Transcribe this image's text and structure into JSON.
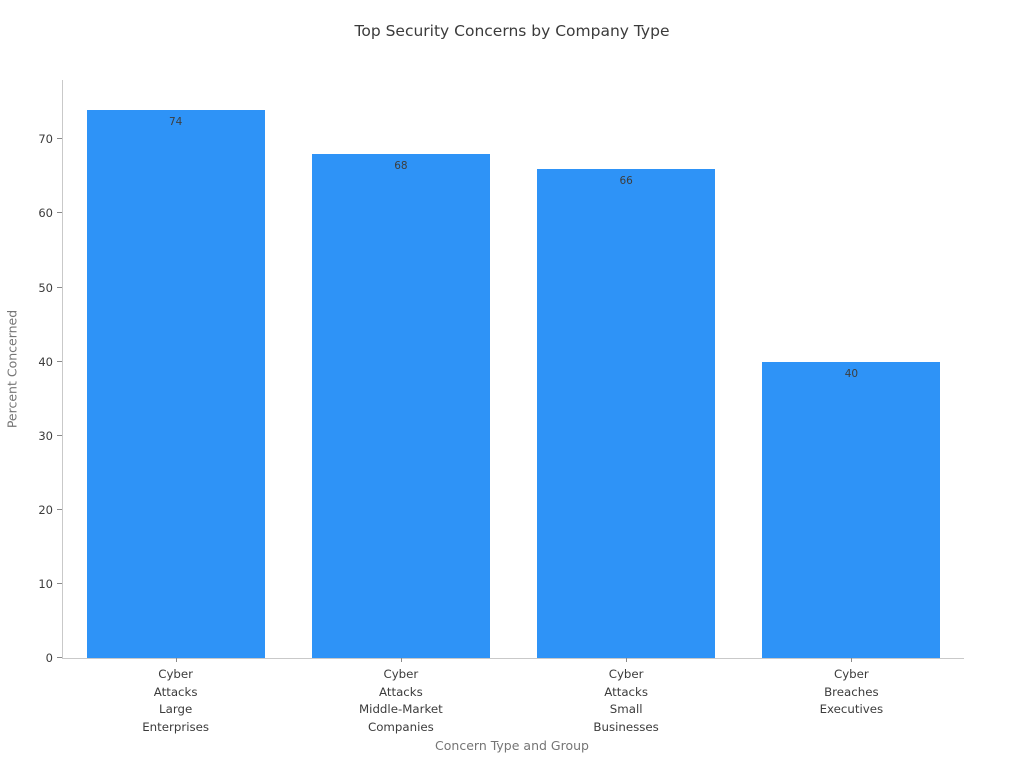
{
  "chart_data": {
    "type": "bar",
    "title": "Top Security Concerns by Company Type",
    "xlabel": "Concern Type and Group",
    "ylabel": "Percent Concerned",
    "categories": [
      "Cyber\nAttacks\nLarge\nEnterprises",
      "Cyber\nAttacks\nMiddle-Market\nCompanies",
      "Cyber\nAttacks\nSmall\nBusinesses",
      "Cyber\nBreaches\nExecutives"
    ],
    "values": [
      74,
      68,
      66,
      40
    ],
    "bar_labels": [
      "74",
      "68",
      "66",
      "40"
    ],
    "ylim": [
      0,
      78
    ],
    "yticks": [
      0,
      10,
      20,
      30,
      40,
      50,
      60,
      70
    ],
    "grid": false,
    "legend_position": "none",
    "colors": {
      "bar": "#2E93F7",
      "title": "#3b3b3b",
      "axis_label": "#757575",
      "tick_label": "#3c3c3c",
      "value_label": "#3d3d3d",
      "spine": "#c9c9c9"
    }
  }
}
